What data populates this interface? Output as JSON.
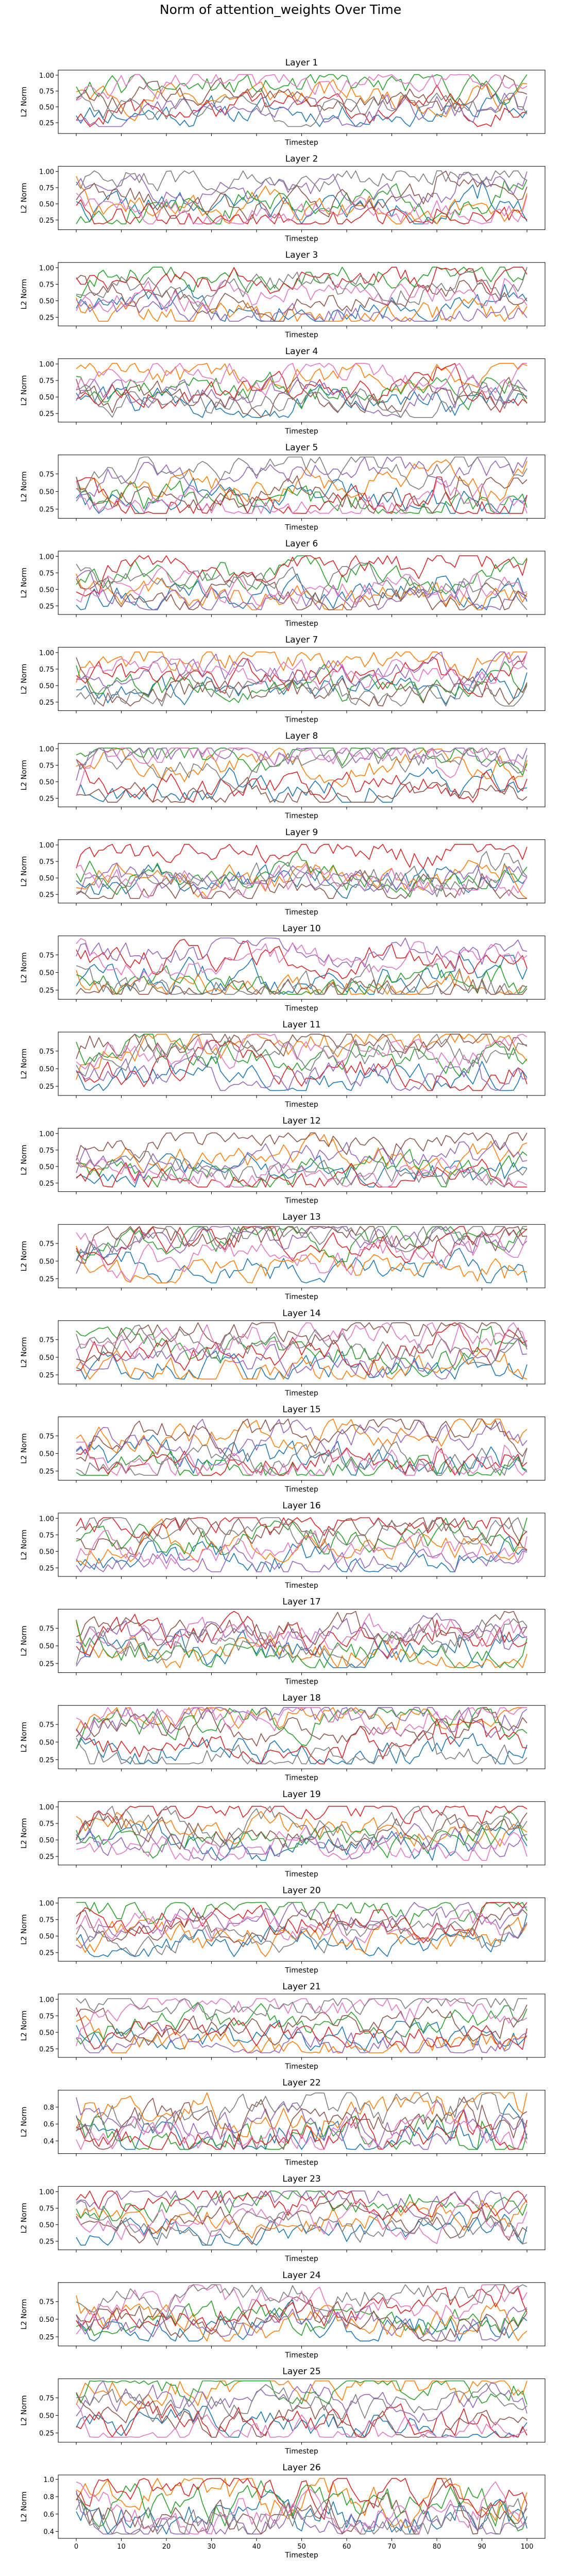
{
  "figure": {
    "title": "Norm of attention_weights Over Time",
    "colors": [
      "#1f77b4",
      "#ff7f0e",
      "#2ca02c",
      "#d62728",
      "#9467bd",
      "#8c564b",
      "#e377c2",
      "#7f7f7f"
    ]
  },
  "chart_data": [
    {
      "type": "line",
      "title": "Layer 1",
      "xlabel": "Timestep",
      "ylabel": "L2 Norm",
      "xlim": [
        0,
        100
      ],
      "ylim": [
        0.08,
        1.08
      ],
      "yticks": [
        0.25,
        0.5,
        0.75,
        1.0
      ],
      "ytick_labels": [
        "0.25",
        "0.50",
        "0.75",
        "1.00"
      ],
      "x_ticks_labeled": false,
      "seed": 11
    },
    {
      "type": "line",
      "title": "Layer 2",
      "xlabel": "Timestep",
      "ylabel": "L2 Norm",
      "xlim": [
        0,
        100
      ],
      "ylim": [
        0.1,
        1.08
      ],
      "yticks": [
        0.25,
        0.5,
        0.75,
        1.0
      ],
      "ytick_labels": [
        "0.25",
        "0.50",
        "0.75",
        "1.00"
      ],
      "x_ticks_labeled": false,
      "seed": 22
    },
    {
      "type": "line",
      "title": "Layer 3",
      "xlabel": "Timestep",
      "ylabel": "L2 Norm",
      "xlim": [
        0,
        100
      ],
      "ylim": [
        0.12,
        1.08
      ],
      "yticks": [
        0.25,
        0.5,
        0.75,
        1.0
      ],
      "ytick_labels": [
        "0.25",
        "0.50",
        "0.75",
        "1.00"
      ],
      "x_ticks_labeled": false,
      "seed": 33
    },
    {
      "type": "line",
      "title": "Layer 4",
      "xlabel": "Timestep",
      "ylabel": "L2 Norm",
      "xlim": [
        0,
        100
      ],
      "ylim": [
        0.12,
        1.08
      ],
      "yticks": [
        0.25,
        0.5,
        0.75,
        1.0
      ],
      "ytick_labels": [
        "0.25",
        "0.50",
        "0.75",
        "1.00"
      ],
      "x_ticks_labeled": false,
      "seed": 44
    },
    {
      "type": "line",
      "title": "Layer 5",
      "xlabel": "Timestep",
      "ylabel": "L2 Norm",
      "xlim": [
        0,
        100
      ],
      "ylim": [
        0.12,
        1.02
      ],
      "yticks": [
        0.25,
        0.5,
        0.75
      ],
      "ytick_labels": [
        "0.25",
        "0.50",
        "0.75"
      ],
      "x_ticks_labeled": false,
      "seed": 55
    },
    {
      "type": "line",
      "title": "Layer 6",
      "xlabel": "Timestep",
      "ylabel": "L2 Norm",
      "xlim": [
        0,
        100
      ],
      "ylim": [
        0.12,
        1.08
      ],
      "yticks": [
        0.25,
        0.5,
        0.75,
        1.0
      ],
      "ytick_labels": [
        "0.25",
        "0.50",
        "0.75",
        "1.00"
      ],
      "x_ticks_labeled": false,
      "seed": 66
    },
    {
      "type": "line",
      "title": "Layer 7",
      "xlabel": "Timestep",
      "ylabel": "L2 Norm",
      "xlim": [
        0,
        100
      ],
      "ylim": [
        0.12,
        1.08
      ],
      "yticks": [
        0.25,
        0.5,
        0.75,
        1.0
      ],
      "ytick_labels": [
        "0.25",
        "0.50",
        "0.75",
        "1.00"
      ],
      "x_ticks_labeled": false,
      "seed": 77
    },
    {
      "type": "line",
      "title": "Layer 8",
      "xlabel": "Timestep",
      "ylabel": "L2 Norm",
      "xlim": [
        0,
        100
      ],
      "ylim": [
        0.12,
        1.08
      ],
      "yticks": [
        0.25,
        0.5,
        0.75,
        1.0
      ],
      "ytick_labels": [
        "0.25",
        "0.50",
        "0.75",
        "1.00"
      ],
      "x_ticks_labeled": false,
      "seed": 88
    },
    {
      "type": "line",
      "title": "Layer 9",
      "xlabel": "Timestep",
      "ylabel": "L2 Norm",
      "xlim": [
        0,
        100
      ],
      "ylim": [
        0.12,
        1.08
      ],
      "yticks": [
        0.25,
        0.5,
        0.75,
        1.0
      ],
      "ytick_labels": [
        "0.25",
        "0.50",
        "0.75",
        "1.00"
      ],
      "x_ticks_labeled": false,
      "seed": 99
    },
    {
      "type": "line",
      "title": "Layer 10",
      "xlabel": "Timestep",
      "ylabel": "L2 Norm",
      "xlim": [
        0,
        100
      ],
      "ylim": [
        0.12,
        1.02
      ],
      "yticks": [
        0.25,
        0.5,
        0.75
      ],
      "ytick_labels": [
        "0.25",
        "0.50",
        "0.75"
      ],
      "x_ticks_labeled": false,
      "seed": 110
    },
    {
      "type": "line",
      "title": "Layer 11",
      "xlabel": "Timestep",
      "ylabel": "L2 Norm",
      "xlim": [
        0,
        100
      ],
      "ylim": [
        0.12,
        1.02
      ],
      "yticks": [
        0.25,
        0.5,
        0.75
      ],
      "ytick_labels": [
        "0.25",
        "0.50",
        "0.75"
      ],
      "x_ticks_labeled": false,
      "seed": 121
    },
    {
      "type": "line",
      "title": "Layer 12",
      "xlabel": "Timestep",
      "ylabel": "L2 Norm",
      "xlim": [
        0,
        100
      ],
      "ylim": [
        0.12,
        1.08
      ],
      "yticks": [
        0.25,
        0.5,
        0.75,
        1.0
      ],
      "ytick_labels": [
        "0.25",
        "0.50",
        "0.75",
        "1.00"
      ],
      "x_ticks_labeled": false,
      "seed": 132
    },
    {
      "type": "line",
      "title": "Layer 13",
      "xlabel": "Timestep",
      "ylabel": "L2 Norm",
      "xlim": [
        0,
        100
      ],
      "ylim": [
        0.12,
        1.02
      ],
      "yticks": [
        0.25,
        0.5,
        0.75
      ],
      "ytick_labels": [
        "0.25",
        "0.50",
        "0.75"
      ],
      "x_ticks_labeled": false,
      "seed": 143
    },
    {
      "type": "line",
      "title": "Layer 14",
      "xlabel": "Timestep",
      "ylabel": "L2 Norm",
      "xlim": [
        0,
        100
      ],
      "ylim": [
        0.12,
        1.02
      ],
      "yticks": [
        0.25,
        0.5,
        0.75
      ],
      "ytick_labels": [
        "0.25",
        "0.50",
        "0.75"
      ],
      "x_ticks_labeled": false,
      "seed": 154
    },
    {
      "type": "line",
      "title": "Layer 15",
      "xlabel": "Timestep",
      "ylabel": "L2 Norm",
      "xlim": [
        0,
        100
      ],
      "ylim": [
        0.12,
        1.02
      ],
      "yticks": [
        0.25,
        0.5,
        0.75
      ],
      "ytick_labels": [
        "0.25",
        "0.50",
        "0.75"
      ],
      "x_ticks_labeled": false,
      "seed": 165
    },
    {
      "type": "line",
      "title": "Layer 16",
      "xlabel": "Timestep",
      "ylabel": "L2 Norm",
      "xlim": [
        0,
        100
      ],
      "ylim": [
        0.12,
        1.08
      ],
      "yticks": [
        0.25,
        0.5,
        0.75,
        1.0
      ],
      "ytick_labels": [
        "0.25",
        "0.50",
        "0.75",
        "1.00"
      ],
      "x_ticks_labeled": false,
      "seed": 176
    },
    {
      "type": "line",
      "title": "Layer 17",
      "xlabel": "Timestep",
      "ylabel": "L2 Norm",
      "xlim": [
        0,
        100
      ],
      "ylim": [
        0.12,
        1.02
      ],
      "yticks": [
        0.25,
        0.5,
        0.75
      ],
      "ytick_labels": [
        "0.25",
        "0.50",
        "0.75"
      ],
      "x_ticks_labeled": false,
      "seed": 187
    },
    {
      "type": "line",
      "title": "Layer 18",
      "xlabel": "Timestep",
      "ylabel": "L2 Norm",
      "xlim": [
        0,
        100
      ],
      "ylim": [
        0.12,
        1.02
      ],
      "yticks": [
        0.25,
        0.5,
        0.75
      ],
      "ytick_labels": [
        "0.25",
        "0.50",
        "0.75"
      ],
      "x_ticks_labeled": false,
      "seed": 198
    },
    {
      "type": "line",
      "title": "Layer 19",
      "xlabel": "Timestep",
      "ylabel": "L2 Norm",
      "xlim": [
        0,
        100
      ],
      "ylim": [
        0.12,
        1.08
      ],
      "yticks": [
        0.25,
        0.5,
        0.75,
        1.0
      ],
      "ytick_labels": [
        "0.25",
        "0.50",
        "0.75",
        "1.00"
      ],
      "x_ticks_labeled": false,
      "seed": 209
    },
    {
      "type": "line",
      "title": "Layer 20",
      "xlabel": "Timestep",
      "ylabel": "L2 Norm",
      "xlim": [
        0,
        100
      ],
      "ylim": [
        0.12,
        1.08
      ],
      "yticks": [
        0.25,
        0.5,
        0.75,
        1.0
      ],
      "ytick_labels": [
        "0.25",
        "0.50",
        "0.75",
        "1.00"
      ],
      "x_ticks_labeled": false,
      "seed": 220
    },
    {
      "type": "line",
      "title": "Layer 21",
      "xlabel": "Timestep",
      "ylabel": "L2 Norm",
      "xlim": [
        0,
        100
      ],
      "ylim": [
        0.12,
        1.08
      ],
      "yticks": [
        0.25,
        0.5,
        0.75,
        1.0
      ],
      "ytick_labels": [
        "0.25",
        "0.50",
        "0.75",
        "1.00"
      ],
      "x_ticks_labeled": false,
      "seed": 231
    },
    {
      "type": "line",
      "title": "Layer 22",
      "xlabel": "Timestep",
      "ylabel": "L2 Norm",
      "xlim": [
        0,
        100
      ],
      "ylim": [
        0.25,
        1.0
      ],
      "yticks": [
        0.4,
        0.6,
        0.8
      ],
      "ytick_labels": [
        "0.4",
        "0.6",
        "0.8"
      ],
      "x_ticks_labeled": false,
      "seed": 242
    },
    {
      "type": "line",
      "title": "Layer 23",
      "xlabel": "Timestep",
      "ylabel": "L2 Norm",
      "xlim": [
        0,
        100
      ],
      "ylim": [
        0.12,
        1.08
      ],
      "yticks": [
        0.25,
        0.5,
        0.75,
        1.0
      ],
      "ytick_labels": [
        "0.25",
        "0.50",
        "0.75",
        "1.00"
      ],
      "x_ticks_labeled": false,
      "seed": 253
    },
    {
      "type": "line",
      "title": "Layer 24",
      "xlabel": "Timestep",
      "ylabel": "L2 Norm",
      "xlim": [
        0,
        100
      ],
      "ylim": [
        0.12,
        1.02
      ],
      "yticks": [
        0.25,
        0.5,
        0.75
      ],
      "ytick_labels": [
        "0.25",
        "0.50",
        "0.75"
      ],
      "x_ticks_labeled": false,
      "seed": 264
    },
    {
      "type": "line",
      "title": "Layer 25",
      "xlabel": "Timestep",
      "ylabel": "L2 Norm",
      "xlim": [
        0,
        100
      ],
      "ylim": [
        0.12,
        1.02
      ],
      "yticks": [
        0.25,
        0.5,
        0.75
      ],
      "ytick_labels": [
        "0.25",
        "0.50",
        "0.75"
      ],
      "x_ticks_labeled": false,
      "seed": 275
    },
    {
      "type": "line",
      "title": "Layer 26",
      "xlabel": "Timestep",
      "ylabel": "L2 Norm",
      "xlim": [
        -4,
        104
      ],
      "ylim": [
        0.32,
        1.05
      ],
      "yticks": [
        0.4,
        0.6,
        0.8,
        1.0
      ],
      "ytick_labels": [
        "0.4",
        "0.6",
        "0.8",
        "1.0"
      ],
      "x_ticks_labeled": true,
      "xticks": [
        0,
        10,
        20,
        30,
        40,
        50,
        60,
        70,
        80,
        90,
        100
      ],
      "xtick_labels": [
        "0",
        "10",
        "20",
        "30",
        "40",
        "50",
        "60",
        "70",
        "80",
        "90",
        "100"
      ],
      "seed": 286
    }
  ]
}
